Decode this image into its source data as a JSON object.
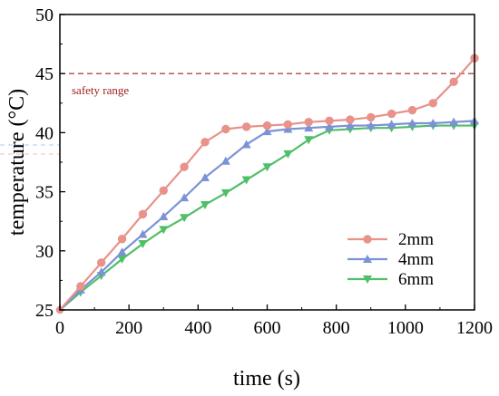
{
  "chart_data": {
    "type": "line",
    "title": "",
    "xlabel": "time (s)",
    "ylabel": "temperature (°C)",
    "xlim": [
      0,
      1200
    ],
    "ylim": [
      25,
      50
    ],
    "xticks": [
      0,
      200,
      400,
      600,
      800,
      1000,
      1200
    ],
    "yticks": [
      25,
      30,
      35,
      40,
      45,
      50
    ],
    "x": [
      0,
      60,
      120,
      180,
      240,
      300,
      360,
      420,
      480,
      540,
      600,
      660,
      720,
      780,
      840,
      900,
      960,
      1020,
      1080,
      1140,
      1200
    ],
    "series": [
      {
        "name": "2mm",
        "color": "#e8928a",
        "marker": "circle",
        "values": [
          25.0,
          27.0,
          29.0,
          31.0,
          33.1,
          35.1,
          37.1,
          39.2,
          40.3,
          40.5,
          40.6,
          40.7,
          40.9,
          41.0,
          41.1,
          41.3,
          41.6,
          41.9,
          42.5,
          44.3,
          46.3
        ]
      },
      {
        "name": "4mm",
        "color": "#7b92d6",
        "marker": "triangle-up",
        "values": [
          25.0,
          26.7,
          28.2,
          29.9,
          31.4,
          32.9,
          34.5,
          36.2,
          37.6,
          39.0,
          40.1,
          40.3,
          40.4,
          40.5,
          40.6,
          40.6,
          40.7,
          40.8,
          40.8,
          40.9,
          41.0
        ]
      },
      {
        "name": "6mm",
        "color": "#4fbf68",
        "marker": "triangle-down",
        "values": [
          25.0,
          26.5,
          27.9,
          29.3,
          30.6,
          31.8,
          32.8,
          33.9,
          34.9,
          36.0,
          37.1,
          38.2,
          39.4,
          40.2,
          40.3,
          40.4,
          40.4,
          40.5,
          40.6,
          40.6,
          40.6
        ]
      }
    ],
    "annotations": [
      {
        "text": "safety range",
        "y": 45,
        "color": "#a02020",
        "style": "dashed"
      }
    ],
    "grid": false,
    "legend_position": "lower-right"
  }
}
